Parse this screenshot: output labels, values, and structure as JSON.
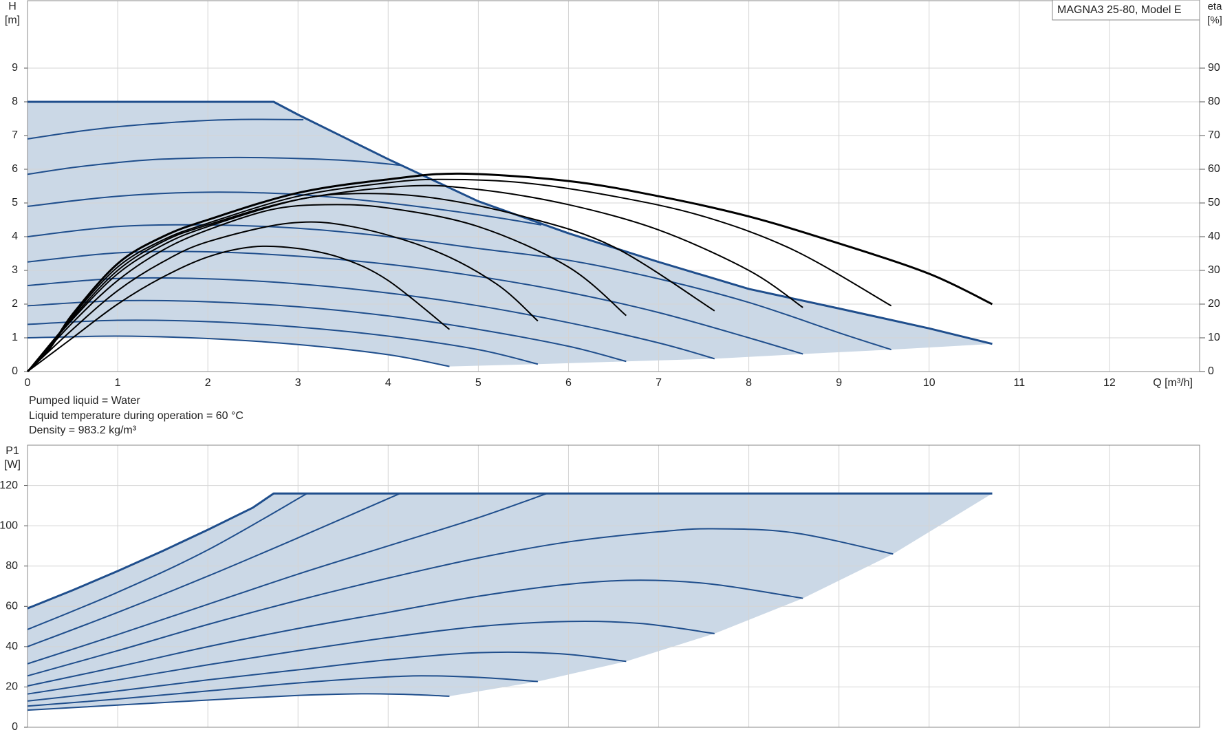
{
  "chart_data": [
    {
      "type": "line",
      "ylabel": "H",
      "yunit": "[m]",
      "y2label": "eta",
      "y2unit": "[%]",
      "xlabel": "Q [m³/h]",
      "box_label": "MAGNA3 25-80, Model E",
      "xlim": [
        0,
        13
      ],
      "xticks": [
        0,
        1,
        2,
        3,
        4,
        5,
        6,
        7,
        8,
        9,
        10,
        11,
        12
      ],
      "ylim": [
        0,
        11
      ],
      "yticks": [
        0,
        1,
        2,
        3,
        4,
        5,
        6,
        7,
        8,
        9
      ],
      "y2lim": [
        0,
        110
      ],
      "y2ticks": [
        0,
        10,
        20,
        30,
        40,
        50,
        60,
        70,
        80,
        90
      ],
      "grid": true,
      "fill_color": "#cbd8e6",
      "series": [
        {
          "color": "#1f4e8c",
          "x": [
            0,
            2.73,
            3,
            4,
            5,
            6,
            7,
            8,
            9,
            10,
            10.7
          ],
          "values": [
            8,
            8,
            7.62,
            6.3,
            5.05,
            4.1,
            3.25,
            2.45,
            1.87,
            1.28,
            0.82
          ]
        },
        {
          "color": "#1f4e8c",
          "x": [
            0,
            0.5,
            1,
            1.5,
            2,
            2.5,
            3.06
          ],
          "values": [
            6.9,
            7.1,
            7.26,
            7.37,
            7.45,
            7.48,
            7.47
          ]
        },
        {
          "color": "#1f4e8c",
          "x": [
            0,
            0.5,
            1,
            1.5,
            2.3,
            3,
            3.6,
            4.14
          ],
          "values": [
            5.85,
            6.05,
            6.2,
            6.3,
            6.35,
            6.32,
            6.25,
            6.12
          ]
        },
        {
          "color": "#1f4e8c",
          "x": [
            0,
            1,
            2,
            3,
            4,
            5,
            5.7
          ],
          "values": [
            4.9,
            5.2,
            5.32,
            5.25,
            5.0,
            4.65,
            4.35
          ]
        },
        {
          "color": "#1f4e8c",
          "x": [
            0,
            1,
            2,
            3,
            4,
            5,
            6,
            7,
            8,
            9,
            9.58
          ],
          "values": [
            4.0,
            4.3,
            4.35,
            4.25,
            4.0,
            3.65,
            3.3,
            2.75,
            2.05,
            1.15,
            0.65
          ]
        },
        {
          "color": "#1f4e8c",
          "x": [
            0,
            1,
            2,
            3,
            4,
            5,
            6,
            7,
            8,
            8.6
          ],
          "values": [
            3.25,
            3.52,
            3.55,
            3.42,
            3.18,
            2.82,
            2.35,
            1.75,
            1.0,
            0.52
          ]
        },
        {
          "color": "#1f4e8c",
          "x": [
            0,
            1,
            2,
            3,
            4,
            5,
            6,
            7,
            7.62
          ],
          "values": [
            2.55,
            2.76,
            2.75,
            2.6,
            2.33,
            1.95,
            1.45,
            0.85,
            0.38
          ]
        },
        {
          "color": "#1f4e8c",
          "x": [
            0,
            1,
            2,
            3,
            4,
            5,
            6,
            6.64
          ],
          "values": [
            1.95,
            2.1,
            2.07,
            1.92,
            1.65,
            1.25,
            0.75,
            0.3
          ]
        },
        {
          "color": "#1f4e8c",
          "x": [
            0,
            1,
            2,
            3,
            4,
            5,
            5.66
          ],
          "values": [
            1.4,
            1.52,
            1.48,
            1.32,
            1.05,
            0.65,
            0.22
          ]
        },
        {
          "color": "#1f4e8c",
          "x": [
            0,
            1,
            2,
            3,
            4,
            4.68
          ],
          "values": [
            1.0,
            1.05,
            0.98,
            0.8,
            0.5,
            0.15
          ]
        },
        {
          "color": "#000000",
          "axis": "y2",
          "x": [
            0,
            0.25,
            0.5,
            1,
            1.5,
            2,
            3,
            4,
            4.8,
            6,
            7,
            8,
            9,
            10,
            10.7
          ],
          "values": [
            0,
            7,
            17,
            32,
            40,
            45,
            53,
            57,
            58.7,
            56.5,
            52,
            46,
            38,
            29,
            20
          ]
        },
        {
          "color": "#000000",
          "axis": "y2",
          "x": [
            0,
            0.25,
            0.5,
            1,
            1.5,
            2,
            3,
            4,
            4.6,
            5.5,
            6.5,
            7.5,
            8.5,
            9.58
          ],
          "values": [
            0,
            7,
            16.5,
            31,
            39,
            44,
            52,
            56,
            57,
            56,
            52,
            46,
            36,
            19.5
          ]
        },
        {
          "color": "#000000",
          "axis": "y2",
          "x": [
            0,
            0.5,
            1,
            1.5,
            2,
            3,
            4.2,
            5,
            6,
            7,
            8,
            8.6
          ],
          "values": [
            0,
            16,
            30,
            38.5,
            43.5,
            51,
            55,
            54,
            49.5,
            42,
            30,
            19
          ]
        },
        {
          "color": "#000000",
          "axis": "y2",
          "x": [
            0,
            0.5,
            1,
            1.5,
            2,
            3,
            3.7,
            4.5,
            5.5,
            6.5,
            7.62
          ],
          "values": [
            0,
            15.5,
            29,
            37.5,
            43,
            51,
            52.8,
            51.5,
            46,
            37,
            18
          ]
        },
        {
          "color": "#000000",
          "axis": "y2",
          "x": [
            0,
            0.5,
            1,
            1.5,
            2,
            2.7,
            3.3,
            4,
            5,
            6,
            6.64
          ],
          "values": [
            0,
            14.5,
            27,
            36,
            42,
            48,
            49.5,
            48.5,
            43,
            31,
            16.6
          ]
        },
        {
          "color": "#000000",
          "axis": "y2",
          "x": [
            0,
            0.5,
            1,
            1.5,
            2,
            2.9,
            3.6,
            4.5,
            5.2,
            5.66
          ],
          "values": [
            0,
            12.5,
            24,
            32.5,
            38.5,
            44,
            43,
            36,
            26,
            15
          ]
        },
        {
          "color": "#000000",
          "axis": "y2",
          "x": [
            0,
            0.5,
            1,
            1.5,
            2,
            2.5,
            3,
            3.5,
            4,
            4.68
          ],
          "values": [
            0,
            10,
            20,
            28,
            34,
            37,
            36.5,
            33.5,
            27,
            12.5
          ]
        }
      ]
    },
    {
      "type": "line",
      "ylabel": "P1",
      "yunit": "[W]",
      "xlim": [
        0,
        13
      ],
      "xticks": [
        0,
        1,
        2,
        3,
        4,
        5,
        6,
        7,
        8,
        9,
        10,
        11,
        12
      ],
      "ylim": [
        0,
        140
      ],
      "yticks": [
        0,
        20,
        40,
        60,
        80,
        100,
        120
      ],
      "grid": true,
      "fill_color": "#cbd8e6",
      "series": [
        {
          "color": "#1f4e8c",
          "x": [
            0,
            0.5,
            1,
            1.5,
            2,
            2.5,
            2.73,
            10.7
          ],
          "values": [
            59,
            68,
            77.5,
            87.5,
            98,
            109,
            116,
            116
          ]
        },
        {
          "color": "#1f4e8c",
          "x": [
            0,
            1,
            2,
            3.1
          ],
          "values": [
            48.5,
            67,
            88,
            116
          ]
        },
        {
          "color": "#1f4e8c",
          "x": [
            0,
            1,
            2,
            3,
            4.13
          ],
          "values": [
            40,
            57,
            75,
            94,
            116
          ]
        },
        {
          "color": "#1f4e8c",
          "x": [
            0,
            1,
            2,
            3,
            4,
            5,
            5.76
          ],
          "values": [
            31.5,
            46,
            61,
            76,
            90,
            104,
            116
          ]
        },
        {
          "color": "#1f4e8c",
          "x": [
            0,
            1,
            2,
            3,
            4,
            5,
            6,
            7,
            7.6,
            8.5,
            9.6
          ],
          "values": [
            25.5,
            38,
            51,
            63,
            74,
            84,
            92,
            97,
            98.5,
            96.5,
            86
          ]
        },
        {
          "color": "#1f4e8c",
          "x": [
            0,
            1,
            2,
            3,
            4,
            5,
            6,
            6.8,
            7.6,
            8.6
          ],
          "values": [
            20.5,
            30,
            40,
            49,
            57,
            65,
            71,
            73,
            71,
            64
          ]
        },
        {
          "color": "#1f4e8c",
          "x": [
            0,
            1,
            2,
            3,
            4,
            5,
            6,
            6.8,
            7.62
          ],
          "values": [
            16.5,
            23.5,
            31,
            38,
            44.5,
            50,
            52.5,
            51.5,
            46.5
          ]
        },
        {
          "color": "#1f4e8c",
          "x": [
            0,
            1,
            2,
            3,
            4,
            5,
            5.9,
            6.64
          ],
          "values": [
            13,
            18,
            23.5,
            28.5,
            33.5,
            37,
            36.5,
            32.7
          ]
        },
        {
          "color": "#1f4e8c",
          "x": [
            0,
            1,
            2,
            3,
            4,
            4.5,
            5.1,
            5.66
          ],
          "values": [
            10.5,
            14,
            18,
            22,
            25,
            25.5,
            24.5,
            22.7
          ]
        },
        {
          "color": "#1f4e8c",
          "x": [
            0,
            1,
            2,
            3,
            3.7,
            4.2,
            4.68
          ],
          "values": [
            8.5,
            11,
            13.5,
            15.8,
            16.6,
            16.3,
            15.4
          ]
        }
      ]
    }
  ],
  "notes": [
    "Pumped liquid = Water",
    "Liquid temperature during operation = 60 °C",
    "Density = 983.2 kg/m³"
  ]
}
